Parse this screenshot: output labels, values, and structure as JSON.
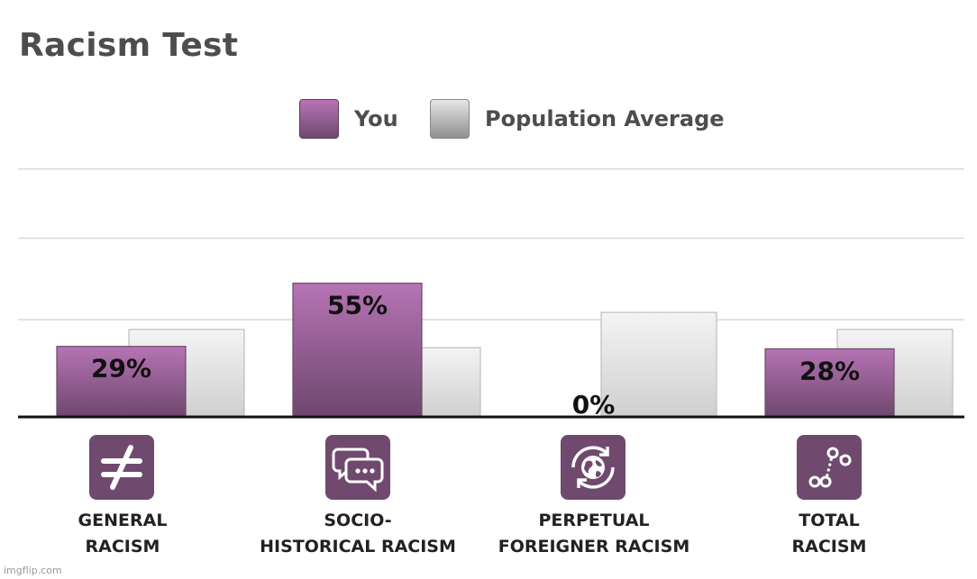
{
  "title": "Racism Test",
  "legend": [
    {
      "label": "You",
      "color": "#a86aa6"
    },
    {
      "label": "Population Average",
      "color": "#c8c8c8"
    }
  ],
  "footer": "imgflip.com",
  "categories": [
    {
      "lines": [
        "GENERAL",
        "RACISM"
      ],
      "icon": "not-equal-icon"
    },
    {
      "lines": [
        "SOCIO-",
        "HISTORICAL RACISM"
      ],
      "icon": "chat-bubbles-icon"
    },
    {
      "lines": [
        "PERPETUAL",
        "FOREIGNER RACISM"
      ],
      "icon": "globe-rotate-icon"
    },
    {
      "lines": [
        "TOTAL",
        "RACISM"
      ],
      "icon": "graph-line-icon"
    }
  ],
  "chart_data": {
    "type": "bar",
    "categories": [
      "GENERAL RACISM",
      "SOCIO-HISTORICAL RACISM",
      "PERPETUAL FOREIGNER RACISM",
      "TOTAL RACISM"
    ],
    "series": [
      {
        "name": "You",
        "values": [
          29,
          55,
          0,
          28
        ],
        "labels": [
          "29%",
          "55%",
          "0%",
          "28%"
        ]
      },
      {
        "name": "Population Average",
        "values": [
          36,
          28.5,
          43,
          36
        ]
      }
    ],
    "ylim": [
      0,
      100
    ],
    "grid": true
  }
}
